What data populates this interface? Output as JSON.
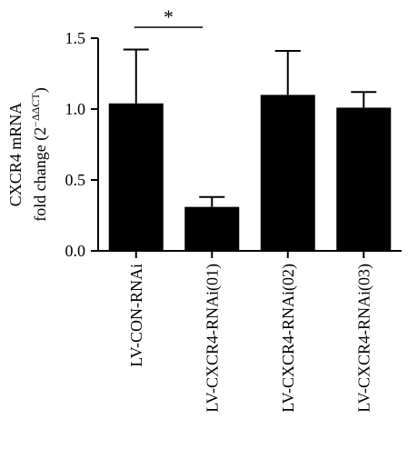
{
  "chart_data": {
    "type": "bar",
    "title": "",
    "ylabel_line1": "CXCR4 mRNA",
    "ylabel_line2_prefix": "fold change (2",
    "ylabel_line2_sup": "−ΔΔCT",
    "ylabel_line2_suffix": ")",
    "categories": [
      "LV-CON-RNAi",
      "LV-CXCR4-RNAi(01)",
      "LV-CXCR4-RNAi(02)",
      "LV-CXCR4-RNAi(03)"
    ],
    "values": [
      1.04,
      0.31,
      1.1,
      1.01
    ],
    "error_upper": [
      1.42,
      0.38,
      1.41,
      1.12
    ],
    "ylim": [
      0,
      1.5
    ],
    "yticks": [
      0.0,
      0.5,
      1.0,
      1.5
    ],
    "ytick_labels": [
      "0.0",
      "0.5",
      "1.0",
      "1.5"
    ],
    "bar_color": "#000000",
    "significance": {
      "from_index": 0,
      "to_index": 1,
      "label": "*"
    }
  }
}
